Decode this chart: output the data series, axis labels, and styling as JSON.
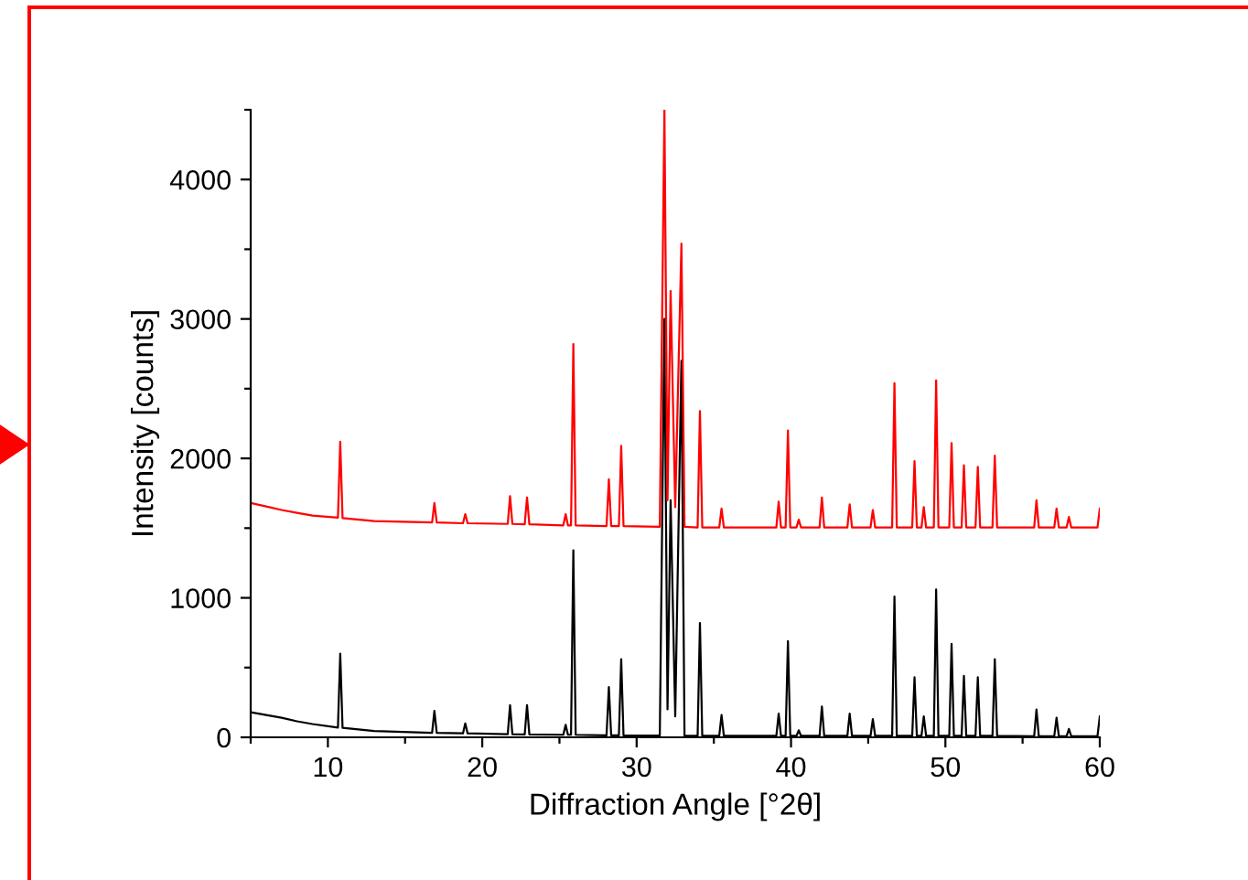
{
  "chart_data": {
    "type": "line",
    "xlabel": "Diffraction Angle [°2θ]",
    "ylabel": "Intensity [counts]",
    "xlim": [
      5,
      60
    ],
    "ylim": [
      0,
      4500
    ],
    "xticks": [
      {
        "value": 5,
        "label": null
      },
      10,
      {
        "value": 15,
        "label": null
      },
      20,
      {
        "value": 25,
        "label": null
      },
      30,
      {
        "value": 35,
        "label": null
      },
      40,
      {
        "value": 45,
        "label": null
      },
      50,
      {
        "value": 55,
        "label": null
      },
      60
    ],
    "yticks": [
      0,
      {
        "value": 500,
        "label": null
      },
      1000,
      {
        "value": 1500,
        "label": null
      },
      2000,
      {
        "value": 2500,
        "label": null
      },
      3000,
      {
        "value": 3500,
        "label": null
      },
      4000,
      {
        "value": 4500,
        "label": null
      }
    ],
    "grid": false,
    "legend": false,
    "marker": "none",
    "line_style": "solid",
    "series": [
      {
        "color": "#000000",
        "x": [
          5,
          6,
          7,
          8,
          9,
          10.65,
          10.8,
          10.95,
          13,
          16.75,
          16.9,
          17.05,
          18.75,
          18.9,
          19.05,
          21.65,
          21.8,
          21.95,
          22.75,
          22.9,
          23.05,
          25.25,
          25.4,
          25.55,
          25.75,
          25.9,
          26.05,
          28.05,
          28.2,
          28.35,
          28.85,
          29.0,
          29.15,
          31.5,
          31.8,
          32.0,
          32.2,
          32.5,
          32.9,
          33.1,
          33.95,
          34.1,
          34.25,
          35.35,
          35.5,
          35.65,
          39.05,
          39.2,
          39.35,
          39.65,
          39.8,
          39.95,
          40.35,
          40.5,
          40.65,
          41.85,
          42.0,
          42.15,
          43.65,
          43.8,
          43.95,
          45.15,
          45.3,
          45.45,
          46.55,
          46.7,
          46.85,
          47.85,
          48.0,
          48.15,
          48.45,
          48.6,
          48.75,
          49.25,
          49.4,
          49.55,
          50.25,
          50.4,
          50.55,
          51.05,
          51.2,
          51.35,
          51.95,
          52.1,
          52.25,
          53.05,
          53.2,
          53.35,
          55.75,
          55.9,
          56.05,
          57.05,
          57.2,
          57.35,
          57.85,
          58.0,
          58.15,
          59.85,
          60.0
        ],
        "values": [
          180,
          160,
          140,
          115,
          95,
          70,
          600,
          68,
          45,
          32,
          190,
          32,
          28,
          100,
          28,
          22,
          230,
          22,
          20,
          230,
          20,
          18,
          90,
          18,
          18,
          1340,
          18,
          14,
          360,
          14,
          14,
          560,
          14,
          12,
          3000,
          200,
          1700,
          150,
          2700,
          12,
          10,
          820,
          10,
          10,
          160,
          10,
          10,
          170,
          10,
          10,
          690,
          10,
          10,
          50,
          10,
          10,
          220,
          10,
          10,
          170,
          10,
          10,
          130,
          10,
          10,
          1010,
          10,
          10,
          430,
          10,
          10,
          150,
          10,
          10,
          1060,
          10,
          10,
          670,
          10,
          10,
          440,
          10,
          10,
          430,
          10,
          10,
          560,
          10,
          8,
          200,
          8,
          8,
          140,
          8,
          8,
          60,
          8,
          8,
          150
        ]
      },
      {
        "color": "#ff0000",
        "x": [
          5,
          6,
          7,
          8,
          9,
          10.65,
          10.8,
          10.95,
          13,
          16.75,
          16.9,
          17.05,
          18.75,
          18.9,
          19.05,
          21.65,
          21.8,
          21.95,
          22.75,
          22.9,
          23.05,
          25.25,
          25.4,
          25.55,
          25.75,
          25.9,
          26.05,
          28.05,
          28.2,
          28.35,
          28.85,
          29.0,
          29.15,
          31.5,
          31.8,
          32.0,
          32.2,
          32.5,
          32.9,
          33.1,
          33.95,
          34.1,
          34.25,
          35.35,
          35.5,
          35.65,
          39.05,
          39.2,
          39.35,
          39.65,
          39.8,
          39.95,
          40.35,
          40.5,
          40.65,
          41.85,
          42.0,
          42.15,
          43.65,
          43.8,
          43.95,
          45.15,
          45.3,
          45.45,
          46.55,
          46.7,
          46.85,
          47.85,
          48.0,
          48.15,
          48.45,
          48.6,
          48.75,
          49.25,
          49.4,
          49.55,
          50.25,
          50.4,
          50.55,
          51.05,
          51.2,
          51.35,
          51.95,
          52.1,
          52.25,
          53.05,
          53.2,
          53.35,
          55.75,
          55.9,
          56.05,
          57.05,
          57.2,
          57.35,
          57.85,
          58.0,
          58.15,
          59.85,
          60.0
        ],
        "values": [
          1680,
          1655,
          1630,
          1610,
          1590,
          1575,
          2120,
          1572,
          1550,
          1540,
          1680,
          1540,
          1535,
          1600,
          1535,
          1530,
          1730,
          1530,
          1528,
          1720,
          1528,
          1520,
          1600,
          1520,
          1520,
          2820,
          1520,
          1515,
          1850,
          1515,
          1515,
          2090,
          1515,
          1510,
          4500,
          1700,
          3200,
          1650,
          3540,
          1510,
          1505,
          2340,
          1505,
          1505,
          1640,
          1505,
          1505,
          1690,
          1505,
          1505,
          2200,
          1505,
          1505,
          1560,
          1505,
          1505,
          1720,
          1505,
          1505,
          1670,
          1505,
          1505,
          1630,
          1505,
          1505,
          2540,
          1505,
          1505,
          1980,
          1505,
          1505,
          1650,
          1505,
          1505,
          2560,
          1505,
          1505,
          2110,
          1505,
          1505,
          1950,
          1505,
          1505,
          1940,
          1505,
          1505,
          2020,
          1505,
          1505,
          1700,
          1505,
          1505,
          1640,
          1505,
          1505,
          1580,
          1505,
          1505,
          1640
        ]
      }
    ]
  }
}
